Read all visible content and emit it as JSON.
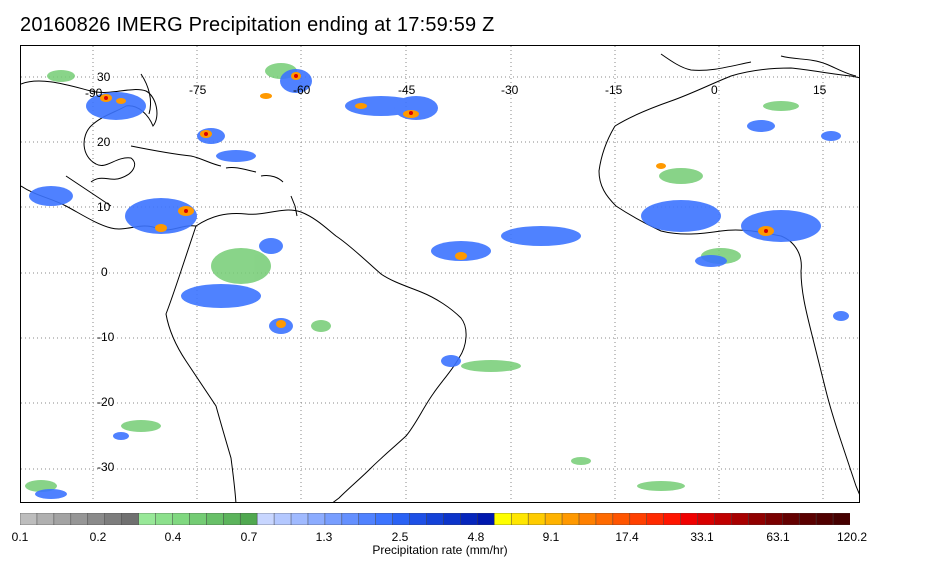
{
  "title": "20160826 IMERG Precipitation ending at 17:59:59 Z",
  "map": {
    "lon_labels": [
      "-90",
      "-75",
      "-60",
      "-45",
      "-30",
      "-15",
      "0",
      "15"
    ],
    "lat_labels": [
      "30",
      "20",
      "10",
      "0",
      "-10",
      "-20",
      "-30"
    ],
    "grid": true
  },
  "colorbar": {
    "ticks": [
      "0.1",
      "0.2",
      "0.4",
      "0.7",
      "1.3",
      "2.5",
      "4.8",
      "9.1",
      "17.4",
      "33.1",
      "63.1",
      "120.2"
    ],
    "label": "Precipitation rate (mm/hr)",
    "colors": [
      "#bdbdbd",
      "#b0b0b0",
      "#a3a3a3",
      "#969696",
      "#8a8a8a",
      "#7d7d7d",
      "#707070",
      "#98e898",
      "#8ce08c",
      "#80d880",
      "#74cc74",
      "#68c068",
      "#5cb45c",
      "#50a850",
      "#c8d6ff",
      "#b4c8ff",
      "#a0baff",
      "#8cacff",
      "#789eff",
      "#6490ff",
      "#5082ff",
      "#3c74ff",
      "#2a62f4",
      "#1e50e6",
      "#1442d8",
      "#0c34ca",
      "#0626bc",
      "#0018ae",
      "#ffff00",
      "#ffe600",
      "#ffcc00",
      "#ffb300",
      "#ff9900",
      "#ff8000",
      "#ff6a00",
      "#ff5500",
      "#ff4000",
      "#ff2a00",
      "#ff1500",
      "#f00000",
      "#d80000",
      "#c00000",
      "#a80000",
      "#900000",
      "#7a0000",
      "#640000",
      "#5a0000",
      "#500000",
      "#460000"
    ]
  }
}
